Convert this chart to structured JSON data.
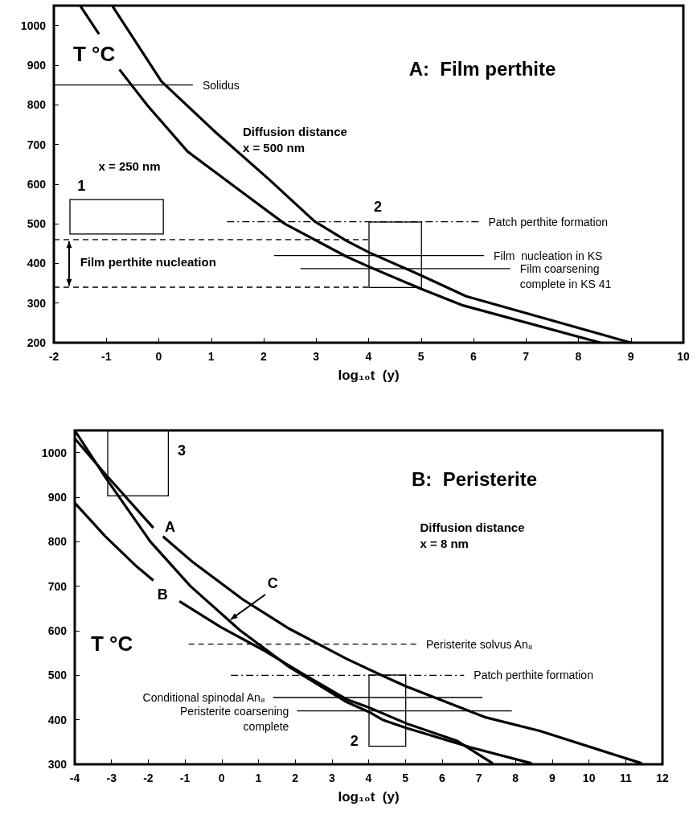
{
  "chart_data": [
    {
      "type": "line",
      "title": "A:  Film perthite",
      "xlabel": "log₁₀t  (y)",
      "ylabel": "T °C",
      "xlim": [
        -2,
        10
      ],
      "ylim": [
        200,
        1050
      ],
      "xticks": [
        -2,
        -1,
        0,
        1,
        2,
        3,
        4,
        5,
        6,
        7,
        8,
        9,
        10
      ],
      "yticks": [
        200,
        300,
        400,
        500,
        600,
        700,
        800,
        900,
        1000
      ],
      "marker": "none",
      "annotations": [
        "Diffusion distance\nx = 500 nm",
        "x = 250 nm",
        "1",
        "2",
        "Film perthite nucleation"
      ],
      "series": [
        {
          "color": "#000000",
          "x": [
            -1.49,
            -1.14,
            -0.95,
            -0.75,
            -0.22,
            0.55,
            1.38,
            2.4,
            3.58,
            4.02,
            4.98,
            5.8,
            8.42
          ],
          "values": [
            1048,
            978,
            null,
            889,
            799,
            682,
            600,
            500,
            417,
            391,
            337,
            294,
            200
          ]
        },
        {
          "color": "#000000",
          "x": [
            -0.88,
            0.05,
            1.08,
            2.1,
            2.97,
            3.58,
            4.02,
            4.98,
            5.86,
            7.18,
            9.0
          ],
          "values": [
            1048,
            859,
            731,
            612,
            506,
            457,
            427,
            371,
            317,
            268,
            200
          ]
        },
        {
          "name": "Solidus",
          "color": "#000000",
          "x": [
            -2,
            0.65
          ],
          "values": [
            850,
            850
          ]
        },
        {
          "name": "Patch perthite formation",
          "color": "#000000",
          "line_style": "dashdot",
          "x": [
            1.3,
            6.1
          ],
          "values": [
            505,
            505
          ]
        },
        {
          "name": "Film  nucleation in KS",
          "color": "#000000",
          "x": [
            2.2,
            6.2
          ],
          "values": [
            420,
            420
          ]
        },
        {
          "name": "Film coarsening\ncomplete in KS 41",
          "color": "#000000",
          "x": [
            2.7,
            6.7
          ],
          "values": [
            387,
            387
          ]
        },
        {
          "color": "#000000",
          "line_style": "dashed",
          "x": [
            -2,
            4
          ],
          "values": [
            460,
            460
          ]
        },
        {
          "color": "#000000",
          "line_style": "dashed",
          "x": [
            -2,
            4
          ],
          "values": [
            340,
            340
          ]
        }
      ]
    },
    {
      "type": "line",
      "title": "B:  Peristerite",
      "xlabel": "log₁₀t  (y)",
      "ylabel": "T °C",
      "xlim": [
        -4,
        12
      ],
      "ylim": [
        300,
        1050
      ],
      "xticks": [
        -4,
        -3,
        -2,
        -1,
        0,
        1,
        2,
        3,
        4,
        5,
        6,
        7,
        8,
        9,
        10,
        11,
        12
      ],
      "yticks": [
        300,
        400,
        500,
        600,
        700,
        800,
        900,
        1000
      ],
      "marker": "none",
      "annotations": [
        "Diffusion distance\nx = 8 nm",
        "A",
        "B",
        {
          "text": "C",
          "x": 0.24,
          "y": 626
        },
        "3",
        "2"
      ],
      "series": [
        {
          "color": "#000000",
          "x": [
            -4,
            -3.17,
            -1.86,
            -1.7,
            -1.6,
            -0.77,
            0.58,
            1.85,
            3.4,
            4.3,
            5.05,
            7.16,
            8.66,
            11.44
          ],
          "values": [
            1032,
            952,
            831,
            null,
            812,
            753,
            670,
            604,
            537,
            502,
            474,
            406,
            375,
            302
          ]
        },
        {
          "color": "#000000",
          "x": [
            -4,
            -3.17,
            -2.35,
            -1.86,
            -1.5,
            -1.15,
            -0.02,
            1.1,
            2.23,
            3.4,
            4,
            5.05,
            6.4,
            7.38
          ],
          "values": [
            887,
            812,
            747,
            713,
            null,
            666,
            608,
            558,
            502,
            446,
            428,
            391,
            353,
            302
          ]
        },
        {
          "color": "#000000",
          "x": [
            -4,
            -3.17,
            -1.94,
            -0.85,
            0.5,
            1.85,
            3.4,
            4,
            4.38,
            5.05,
            6.78,
            8.44
          ],
          "values": [
            1050,
            945,
            800,
            700,
            601,
            518,
            440,
            418,
            400,
            381,
            338,
            302
          ]
        },
        {
          "name": "Peristerite solvus An₈",
          "color": "#000000",
          "line_style": "dashed",
          "x": [
            -0.9,
            5.3
          ],
          "values": [
            570,
            570
          ]
        },
        {
          "name": "Patch perthite formation",
          "color": "#000000",
          "line_style": "dashdot",
          "x": [
            0.25,
            6.6
          ],
          "values": [
            500,
            500
          ]
        },
        {
          "name": "Conditional spinodal An₈",
          "color": "#000000",
          "x": [
            7.1,
            1.4
          ],
          "values": [
            450,
            450
          ]
        },
        {
          "name": "Peristerite coarsening\ncomplete",
          "color": "#000000",
          "x": [
            7.9,
            2.05
          ],
          "values": [
            420,
            420
          ]
        }
      ]
    }
  ]
}
